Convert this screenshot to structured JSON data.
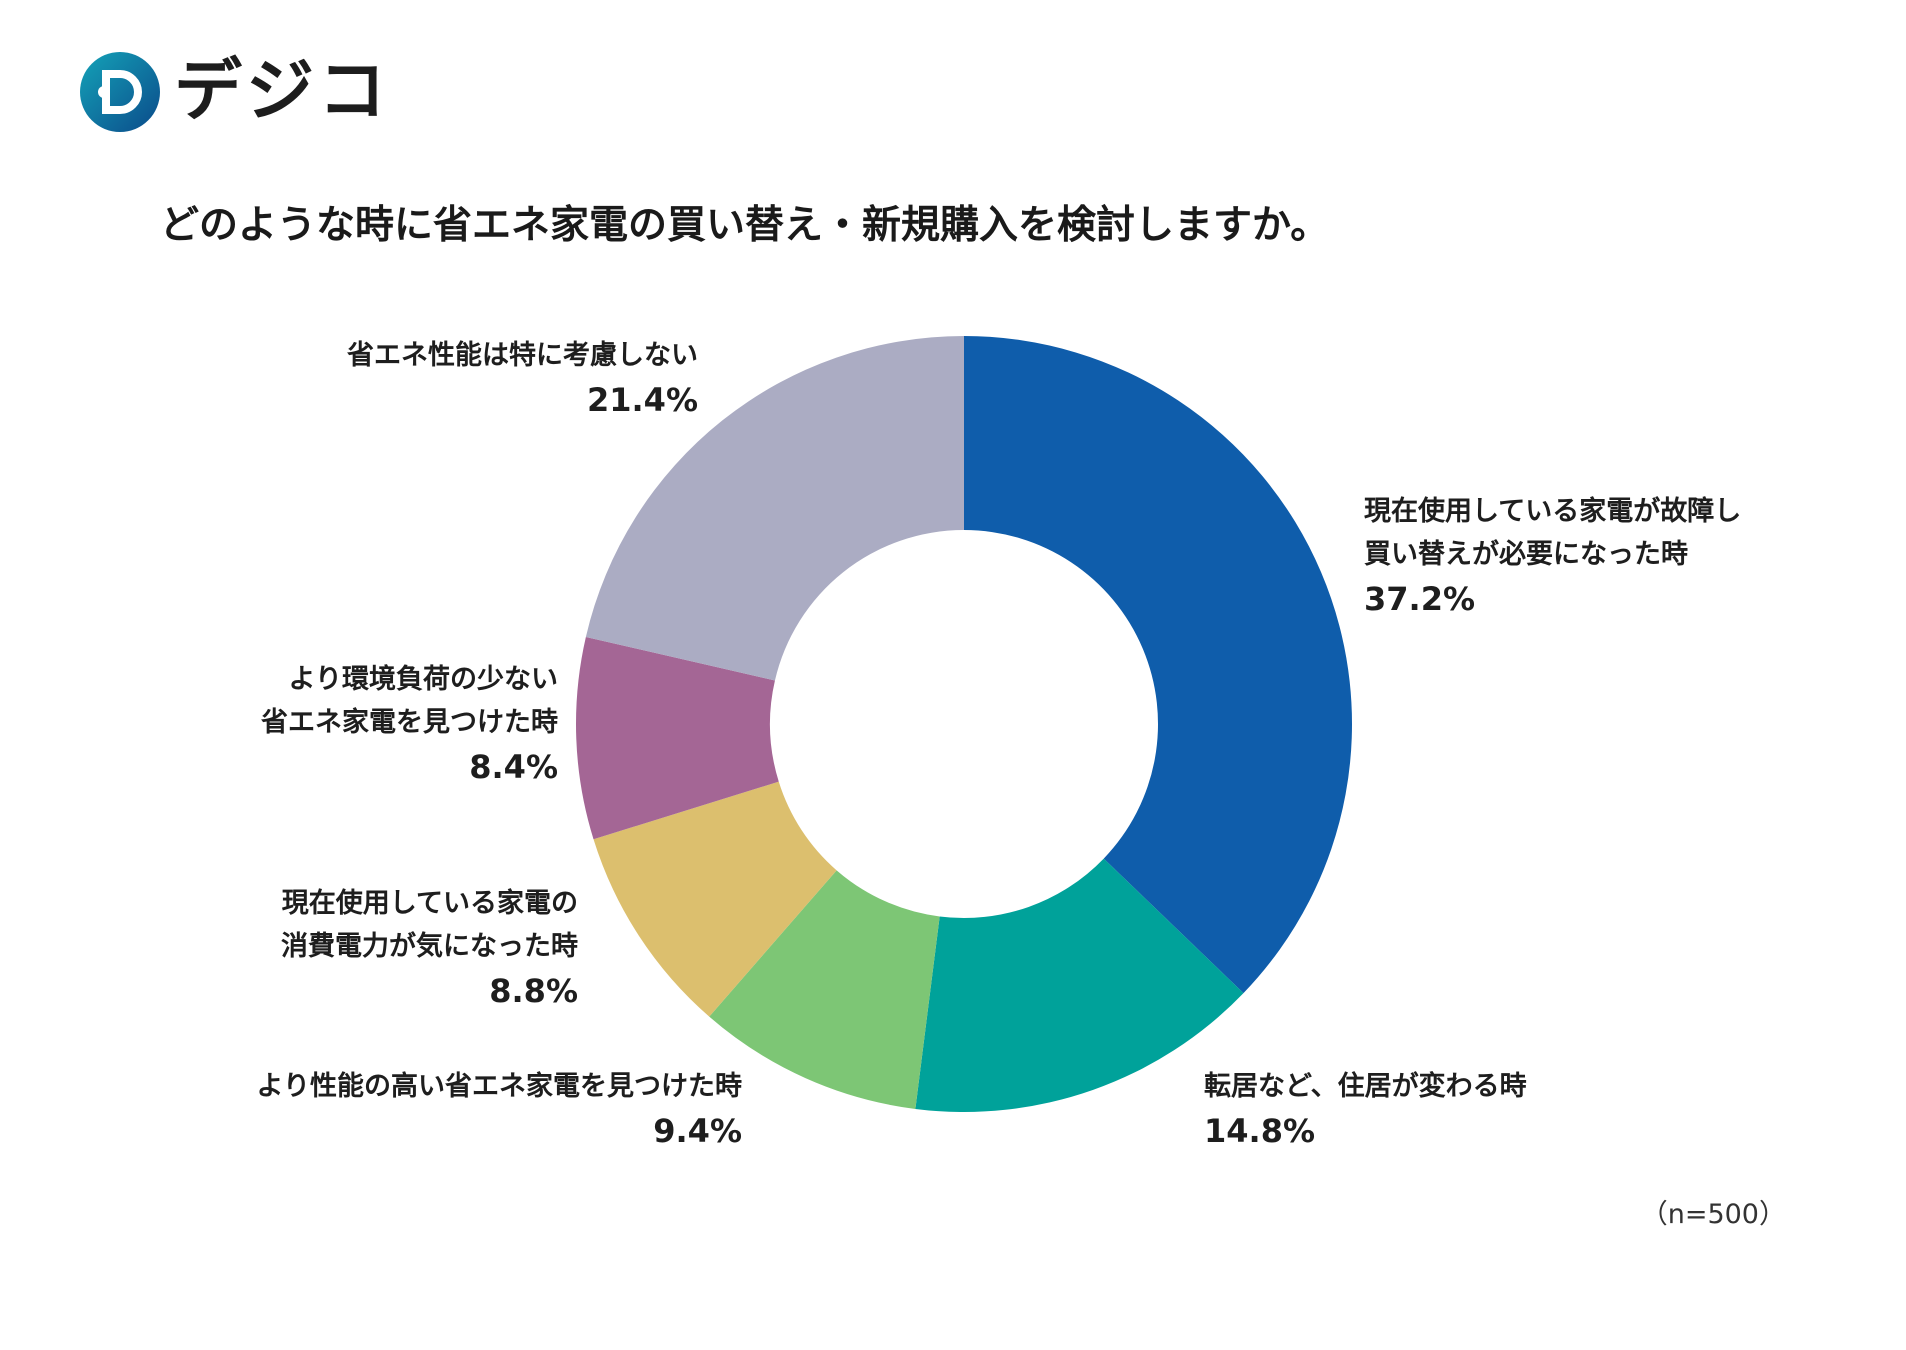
{
  "brand": {
    "name": "デジコ",
    "mark_letter": "D"
  },
  "colors": {
    "logo_dark": "#0b4a8a",
    "logo_light": "#14a3b8"
  },
  "chart_data": {
    "type": "pie",
    "style": "donut",
    "title": "どのような時に省エネ家電の買い替え・新規購入を検討しますか。",
    "note": "（n=500）",
    "slices": [
      {
        "lines": [
          "現在使用している家電が故障し",
          "買い替えが必要になった時"
        ],
        "value": 37.2,
        "value_label": "37.2%",
        "color": "#0f5dab"
      },
      {
        "lines": [
          "転居など、住居が変わる時"
        ],
        "value": 14.8,
        "value_label": "14.8%",
        "color": "#00a29a"
      },
      {
        "lines": [
          "より性能の高い省エネ家電を見つけた時"
        ],
        "value": 9.4,
        "value_label": "9.4%",
        "color": "#7dc675"
      },
      {
        "lines": [
          "現在使用している家電の",
          "消費電力が気になった時"
        ],
        "value": 8.8,
        "value_label": "8.8%",
        "color": "#dcbf6e"
      },
      {
        "lines": [
          "より環境負荷の少ない",
          "省エネ家電を見つけた時"
        ],
        "value": 8.4,
        "value_label": "8.4%",
        "color": "#a46695"
      },
      {
        "lines": [
          "省エネ性能は特に考慮しない"
        ],
        "value": 21.4,
        "value_label": "21.4%",
        "color": "#abacc3"
      }
    ]
  }
}
